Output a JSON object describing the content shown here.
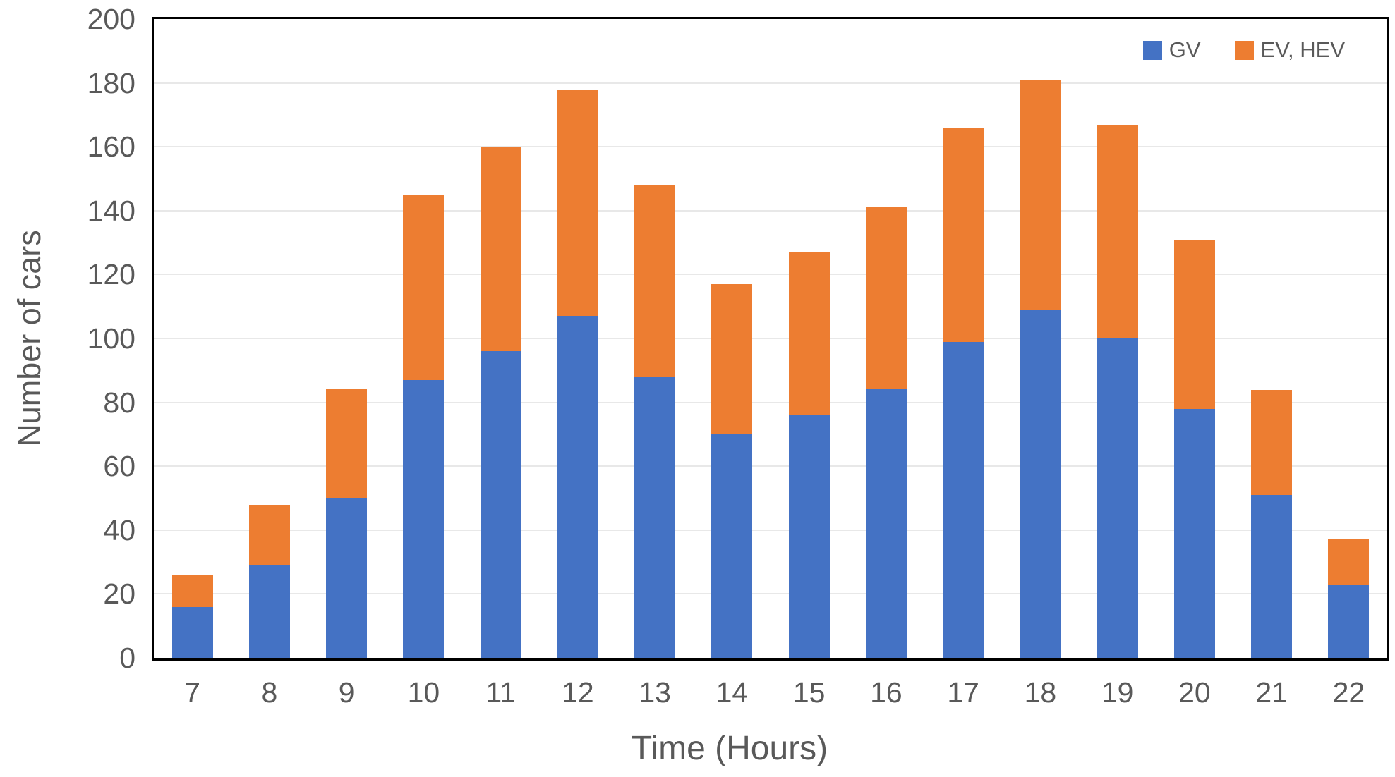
{
  "chart_data": {
    "type": "bar",
    "stacked": true,
    "title": "",
    "xlabel": "Time (Hours)",
    "ylabel": "Number of cars",
    "categories": [
      "7",
      "8",
      "9",
      "10",
      "11",
      "12",
      "13",
      "14",
      "15",
      "16",
      "17",
      "18",
      "19",
      "20",
      "21",
      "22"
    ],
    "series": [
      {
        "name": "GV",
        "color": "#4472C4",
        "values": [
          16,
          29,
          50,
          87,
          96,
          107,
          88,
          70,
          76,
          84,
          99,
          109,
          100,
          78,
          51,
          23
        ]
      },
      {
        "name": "EV, HEV",
        "color": "#ED7D31",
        "values": [
          10,
          19,
          34,
          58,
          64,
          71,
          60,
          47,
          51,
          57,
          67,
          72,
          67,
          53,
          33,
          14
        ]
      }
    ],
    "stack_totals": [
      26,
      48,
      84,
      145,
      160,
      178,
      148,
      117,
      127,
      141,
      166,
      181,
      167,
      131,
      84,
      37
    ],
    "ylim": [
      0,
      200
    ],
    "y_ticks": [
      0,
      20,
      40,
      60,
      80,
      100,
      120,
      140,
      160,
      180,
      200
    ],
    "grid": true,
    "legend_position": "top-right",
    "colors": {
      "gv": "#4472C4",
      "ev_hev": "#ED7D31",
      "axis_text": "#595959",
      "gridline": "#E8E8E8",
      "plot_border": "#000000"
    }
  }
}
